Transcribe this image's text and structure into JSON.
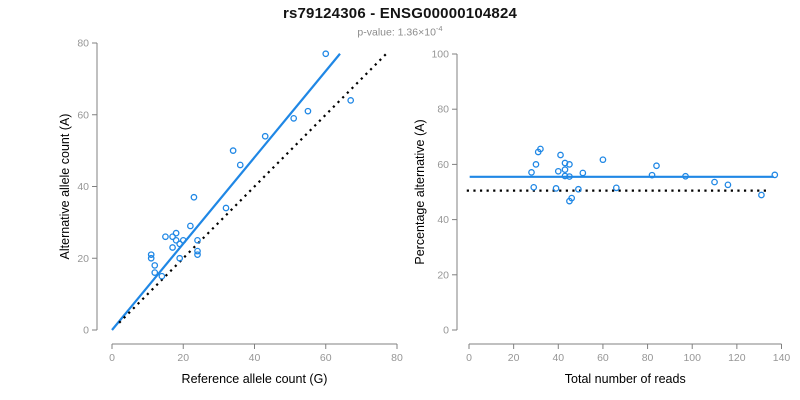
{
  "header": {
    "title": "rs79124306 - ENSG00000104824",
    "subtitle_prefix": "p-value: 1.36×10",
    "subtitle_exponent": "-4"
  },
  "colors": {
    "point_blue": "#1f87e5",
    "line_blue": "#1f87e5",
    "dotted_black": "#000000",
    "axis_line": "#808080",
    "tick_label": "#969696",
    "axis_title": "#000000"
  },
  "chart_data": [
    {
      "type": "scatter",
      "panel": "left",
      "xlabel": "Reference allele count (G)",
      "ylabel": "Alternative allele count (A)",
      "xlim": [
        0,
        80
      ],
      "ylim": [
        0,
        80
      ],
      "xticks": [
        0,
        20,
        40,
        60,
        80
      ],
      "yticks": [
        0,
        20,
        40,
        60,
        80
      ],
      "grid": false,
      "legend": "none",
      "point_style": "open-circle",
      "points": [
        [
          60,
          77
        ],
        [
          67,
          64
        ],
        [
          55,
          61
        ],
        [
          51,
          59
        ],
        [
          43,
          54
        ],
        [
          34,
          50
        ],
        [
          36,
          46
        ],
        [
          32,
          34
        ],
        [
          23,
          37
        ],
        [
          22,
          29
        ],
        [
          24,
          25
        ],
        [
          24,
          22
        ],
        [
          24,
          21
        ],
        [
          20,
          25
        ],
        [
          19,
          24
        ],
        [
          19,
          20
        ],
        [
          18,
          27
        ],
        [
          18,
          25
        ],
        [
          17,
          26
        ],
        [
          17,
          23
        ],
        [
          15,
          26
        ],
        [
          14,
          15
        ],
        [
          12,
          18
        ],
        [
          12,
          16
        ],
        [
          11,
          21
        ],
        [
          11,
          20
        ]
      ],
      "lines": [
        {
          "name": "fit-line",
          "style": "solid",
          "color": "#1f87e5",
          "from": [
            0,
            0
          ],
          "to": [
            64,
            77
          ]
        },
        {
          "name": "identity-line",
          "style": "dotted",
          "color": "#000000",
          "from": [
            2,
            2
          ],
          "to": [
            77.5,
            77.5
          ]
        }
      ]
    },
    {
      "type": "scatter",
      "panel": "right",
      "xlabel": "Total number of reads",
      "ylabel": "Percentage alternative (A)",
      "xlim": [
        0,
        140
      ],
      "ylim": [
        0,
        100
      ],
      "xticks": [
        0,
        20,
        40,
        60,
        80,
        100,
        120,
        140
      ],
      "yticks": [
        0,
        20,
        40,
        60,
        80,
        100
      ],
      "grid": false,
      "legend": "none",
      "point_style": "open-circle",
      "points": [
        [
          137,
          56.2
        ],
        [
          131,
          48.9
        ],
        [
          116,
          52.6
        ],
        [
          110,
          53.6
        ],
        [
          97,
          55.7
        ],
        [
          84,
          59.5
        ],
        [
          82,
          56.1
        ],
        [
          66,
          51.5
        ],
        [
          60,
          61.7
        ],
        [
          51,
          56.9
        ],
        [
          49,
          51.0
        ],
        [
          46,
          47.8
        ],
        [
          45,
          46.7
        ],
        [
          45,
          55.6
        ],
        [
          45,
          60.0
        ],
        [
          43,
          55.8
        ],
        [
          43,
          58.1
        ],
        [
          43,
          60.5
        ],
        [
          40,
          57.5
        ],
        [
          39,
          51.3
        ],
        [
          41,
          63.4
        ],
        [
          29,
          51.7
        ],
        [
          30,
          60.0
        ],
        [
          28,
          57.1
        ],
        [
          32,
          65.6
        ],
        [
          31,
          64.5
        ]
      ],
      "lines": [
        {
          "name": "mean-line",
          "style": "solid",
          "color": "#1f87e5",
          "from": [
            0.3,
            55.5
          ],
          "to": [
            136.5,
            55.5
          ]
        },
        {
          "name": "null-line",
          "style": "dotted",
          "color": "#000000",
          "from": [
            -1,
            50.5
          ],
          "to": [
            134.5,
            50.5
          ]
        }
      ]
    }
  ]
}
